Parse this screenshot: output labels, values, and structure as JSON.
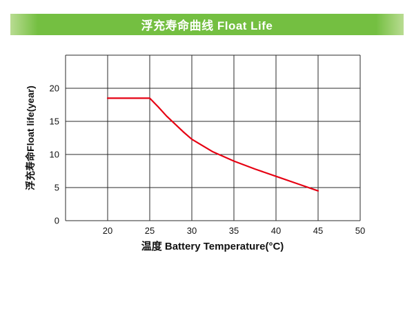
{
  "header": {
    "title": "浮充寿命曲线 Float Life",
    "bg_color": "#74bf41",
    "text_color": "#ffffff"
  },
  "chart_data": {
    "type": "line",
    "title": "浮充寿命曲线 Float Life",
    "xlabel": "温度 Battery Temperature(°C)",
    "ylabel": "浮充寿命Float life(year)",
    "x": [
      20,
      25,
      26,
      27,
      28,
      29,
      30,
      32.5,
      35,
      37.5,
      40,
      42.5,
      45
    ],
    "values": [
      18.5,
      18.5,
      17.2,
      15.8,
      14.6,
      13.4,
      12.3,
      10.4,
      9,
      7.8,
      6.7,
      5.6,
      4.5
    ],
    "series_name": "Float life",
    "xlim": [
      15,
      50
    ],
    "ylim": [
      0,
      25
    ],
    "grid_step_x": 5,
    "grid_step_y": 5,
    "x_ticks": [
      20,
      25,
      30,
      35,
      40,
      45,
      50
    ],
    "y_ticks": [
      0,
      5,
      10,
      15,
      20
    ],
    "line_color": "#e60012",
    "grid": true,
    "legend": "none"
  }
}
